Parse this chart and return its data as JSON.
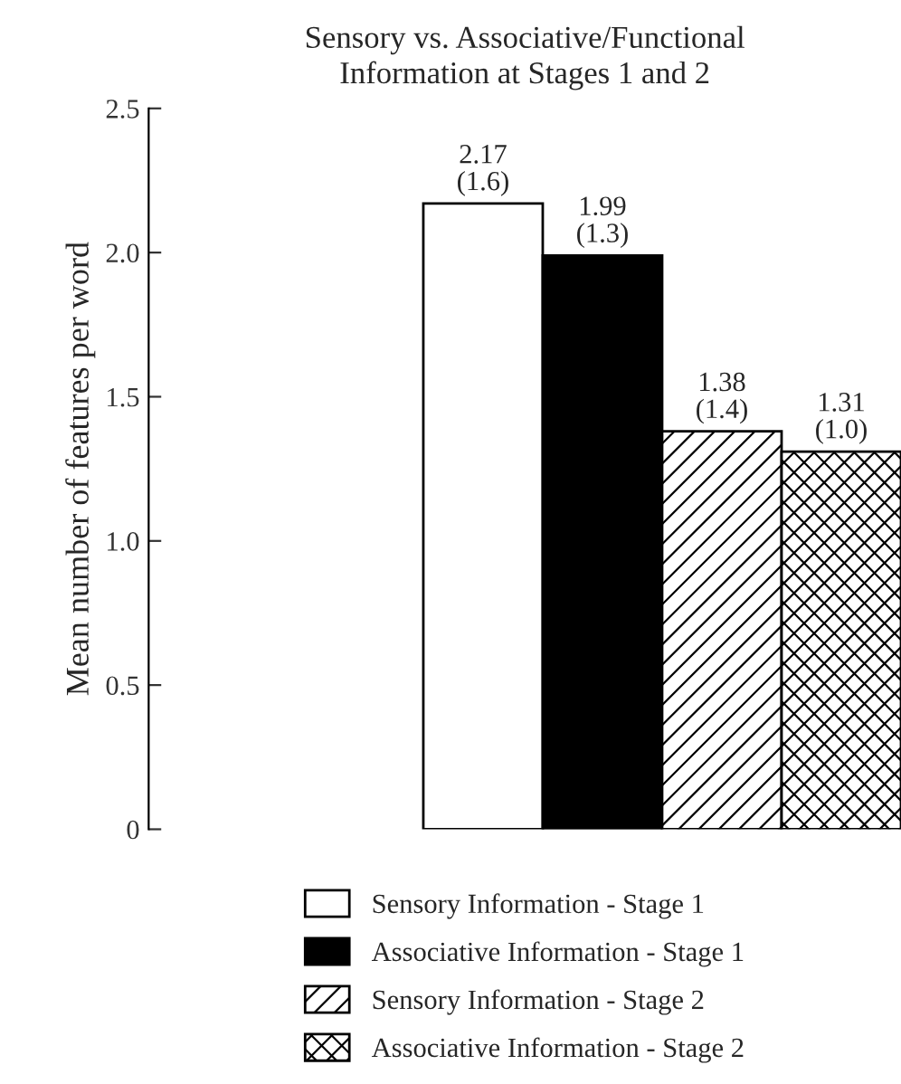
{
  "chart_data": {
    "type": "bar",
    "title": "Sensory vs. Associative/Functional\nInformation at Stages 1 and 2",
    "ylabel": "Mean number of features per word",
    "categories": [
      null
    ],
    "series": [
      {
        "name": "Sensory Information - Stage 1",
        "color": "#ffffff",
        "values": [
          2.17
        ],
        "value_labels": [
          "2.17\n(1.6)"
        ]
      },
      {
        "name": "Associative Information - Stage 1",
        "color": "#000000",
        "values": [
          1.99
        ],
        "value_labels": [
          "1.99\n(1.3)"
        ]
      },
      {
        "name": "Sensory Information - Stage 2",
        "color": "#000000",
        "values": [
          1.38
        ],
        "value_labels": [
          "1.38\n(1.4)"
        ]
      },
      {
        "name": "Associative Information - Stage 2",
        "color": "#000000",
        "values": [
          1.31
        ],
        "value_labels": [
          "1.31\n(1.0)"
        ]
      }
    ],
    "ylim": [
      0,
      2.5
    ],
    "yticks": [
      0,
      {
        "value": 0.5,
        "label": "0.5"
      },
      {
        "value": 1,
        "label": "1.0"
      },
      {
        "value": 1.5,
        "label": "1.5"
      },
      {
        "value": 2,
        "label": "2.0"
      },
      {
        "value": 2.5,
        "label": "2.5"
      }
    ],
    "grid": false,
    "legend": "bottom"
  }
}
